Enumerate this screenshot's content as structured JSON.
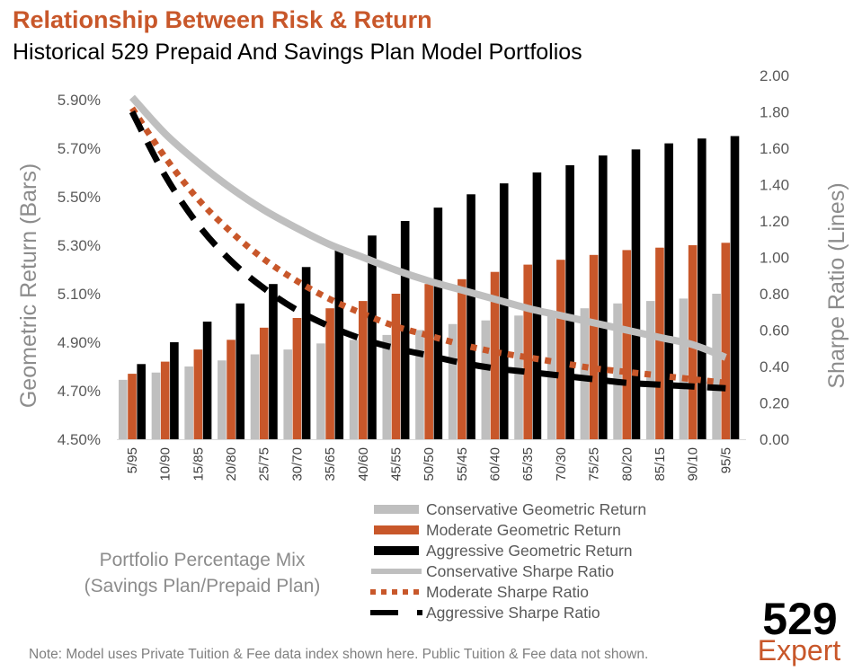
{
  "chart_data": {
    "type": "bar",
    "title": "Relationship Between Risk & Return",
    "subtitle": "Historical 529 Prepaid And Savings Plan Model Portfolios",
    "xlabel": [
      "Portfolio Percentage Mix",
      "(Savings Plan/Prepaid Plan)"
    ],
    "ylabel": "Geometric Return (Bars)",
    "y2label": "Sharpe Ratio (Lines)",
    "ylim": [
      4.5,
      5.9
    ],
    "y2lim": [
      0,
      2.0
    ],
    "yticks": [
      "4.50%",
      "4.70%",
      "4.90%",
      "5.10%",
      "5.30%",
      "5.50%",
      "5.70%",
      "5.90%"
    ],
    "y2ticks": [
      "0.00",
      "0.20",
      "0.40",
      "0.60",
      "0.80",
      "1.00",
      "1.20",
      "1.40",
      "1.60",
      "1.80",
      "2.00"
    ],
    "grid": false,
    "legend_position": "bottom",
    "categories": [
      "5/95",
      "10/90",
      "15/85",
      "20/80",
      "25/75",
      "30/70",
      "35/65",
      "40/60",
      "45/55",
      "50/50",
      "55/45",
      "60/40",
      "65/35",
      "70/30",
      "75/25",
      "80/20",
      "85/15",
      "90/10",
      "95/5"
    ],
    "bar_series": [
      {
        "name": "Conservative Geometric Return",
        "color": "#bfbfbf",
        "values": [
          4.745,
          4.775,
          4.8,
          4.825,
          4.85,
          4.87,
          4.895,
          4.91,
          4.93,
          4.95,
          4.975,
          4.99,
          5.01,
          5.03,
          5.04,
          5.06,
          5.07,
          5.08,
          5.1
        ]
      },
      {
        "name": "Moderate Geometric Return",
        "color": "#c8572a",
        "values": [
          4.77,
          4.82,
          4.87,
          4.91,
          4.96,
          5.0,
          5.04,
          5.07,
          5.1,
          5.14,
          5.16,
          5.19,
          5.22,
          5.24,
          5.26,
          5.28,
          5.29,
          5.3,
          5.31
        ]
      },
      {
        "name": "Aggressive Geometric Return",
        "color": "#000000",
        "values": [
          4.81,
          4.9,
          4.985,
          5.06,
          5.14,
          5.21,
          5.28,
          5.34,
          5.4,
          5.455,
          5.51,
          5.555,
          5.6,
          5.63,
          5.67,
          5.695,
          5.72,
          5.74,
          5.75
        ]
      }
    ],
    "line_series": [
      {
        "name": "Conservative Sharpe Ratio",
        "color": "#bfbfbf",
        "style": "solid",
        "values": [
          1.88,
          1.68,
          1.52,
          1.38,
          1.26,
          1.16,
          1.07,
          1.0,
          0.93,
          0.87,
          0.82,
          0.77,
          0.72,
          0.68,
          0.64,
          0.6,
          0.56,
          0.52,
          0.45
        ]
      },
      {
        "name": "Moderate Sharpe Ratio",
        "color": "#c8572a",
        "style": "dotted",
        "values": [
          1.82,
          1.55,
          1.32,
          1.14,
          0.99,
          0.87,
          0.77,
          0.69,
          0.62,
          0.57,
          0.52,
          0.48,
          0.45,
          0.42,
          0.39,
          0.37,
          0.35,
          0.33,
          0.31
        ]
      },
      {
        "name": "Aggressive Sharpe Ratio",
        "color": "#000000",
        "style": "dashed",
        "values": [
          1.8,
          1.45,
          1.18,
          0.98,
          0.83,
          0.71,
          0.62,
          0.55,
          0.5,
          0.46,
          0.42,
          0.39,
          0.37,
          0.35,
          0.33,
          0.31,
          0.3,
          0.29,
          0.28
        ]
      }
    ]
  },
  "note": "Note: Model uses Private Tuition & Fee data index shown here. Public Tuition & Fee data not shown.",
  "logo": {
    "line1": "529",
    "line2": "Expert"
  },
  "colors": {
    "accent": "#c8572a",
    "axis_text": "#595959",
    "axis_title": "#8c8c8c"
  }
}
